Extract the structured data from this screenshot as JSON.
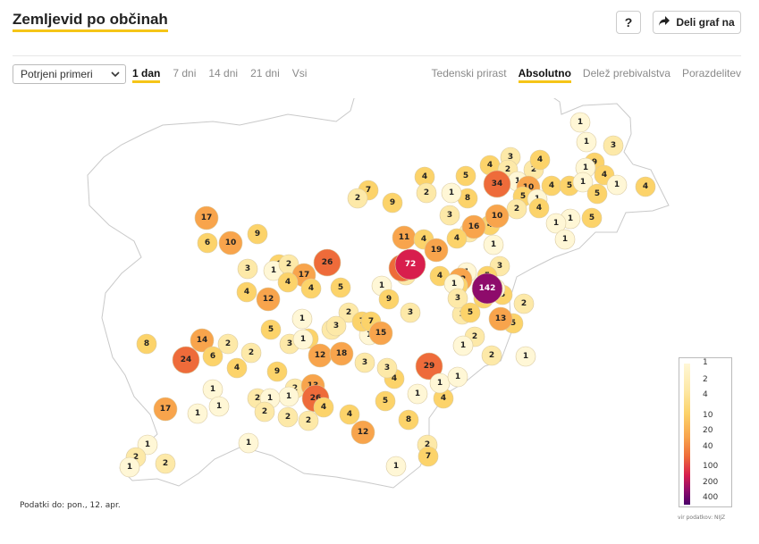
{
  "header": {
    "title": "Zemljevid po občinah",
    "help_label": "?",
    "share_label": "Deli graf na"
  },
  "controls": {
    "measure_select": {
      "value": "Potrjeni primeri"
    },
    "time_tabs": [
      {
        "label": "1 dan",
        "active": true
      },
      {
        "label": "7 dni",
        "active": false
      },
      {
        "label": "14 dni",
        "active": false
      },
      {
        "label": "21 dni",
        "active": false
      },
      {
        "label": "Vsi",
        "active": false
      }
    ],
    "view_tabs": [
      {
        "label": "Tedenski prirast",
        "active": false
      },
      {
        "label": "Absolutno",
        "active": true
      },
      {
        "label": "Delež prebivalstva",
        "active": false
      },
      {
        "label": "Porazdelitev",
        "active": false
      }
    ]
  },
  "map": {
    "color_scale": [
      "#fff7d6",
      "#fde9a8",
      "#fcd36a",
      "#f8a44c",
      "#ee6b3a",
      "#d81e4d",
      "#8e0b6b"
    ],
    "legend_ticks": [
      "1",
      "2",
      "4",
      "10",
      "20",
      "40",
      "100",
      "200",
      "400"
    ],
    "municipality_values": [
      1,
      1,
      3,
      9,
      4,
      1,
      4,
      3,
      4,
      2,
      1,
      2,
      4,
      34,
      10,
      5,
      1,
      4,
      2,
      4,
      5,
      1,
      1,
      5,
      5,
      1,
      1,
      1,
      5,
      4,
      2,
      8,
      3,
      2,
      4,
      1,
      17,
      6,
      10,
      9,
      7,
      1,
      2,
      9,
      1,
      2,
      16,
      10,
      11,
      4,
      4,
      1,
      3,
      1,
      2,
      5,
      8,
      2,
      1,
      1,
      12,
      8,
      5,
      6,
      26,
      19,
      24,
      72,
      4,
      29,
      3,
      1,
      2,
      17,
      4,
      4,
      5,
      9,
      1,
      3,
      4,
      12,
      1,
      3,
      8,
      2,
      13,
      142,
      5,
      4,
      3,
      1,
      2,
      7,
      7,
      3,
      15,
      8,
      14,
      2,
      6,
      5,
      2,
      6,
      9,
      3,
      1,
      12,
      18,
      3,
      4,
      1,
      2,
      24,
      4,
      1,
      1,
      1,
      2,
      13,
      3,
      1,
      26,
      4,
      4,
      5,
      1,
      8,
      2,
      7,
      1,
      12,
      1,
      2,
      2,
      2,
      17,
      1,
      2,
      2,
      1,
      1,
      1,
      1,
      2,
      1,
      1
    ]
  },
  "footer": {
    "data_date": "Podatki do: pon., 12. apr.",
    "source": "vir podatkov: NIJZ"
  }
}
